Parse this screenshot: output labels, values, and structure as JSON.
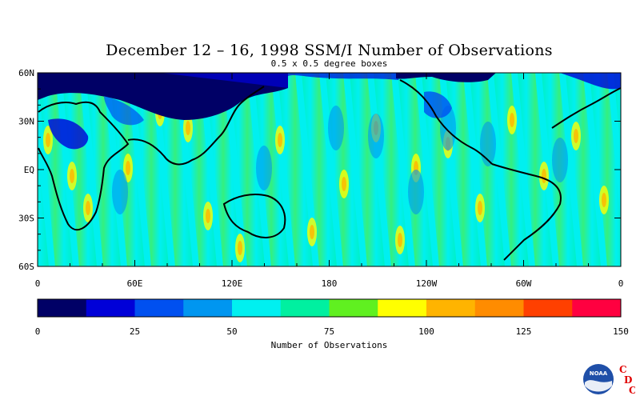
{
  "title": "December 12 – 16, 1998 SSM/I Number of Observations",
  "subtitle": "0.5 x 0.5 degree boxes",
  "map": {
    "lat_labels": [
      "60N",
      "30N",
      "EQ",
      "30S",
      "60S"
    ],
    "lat_values": [
      60,
      30,
      0,
      -30,
      -60
    ],
    "lon_labels": [
      "0",
      "60E",
      "120E",
      "180",
      "120W",
      "60W",
      "0"
    ],
    "lon_values": [
      0,
      60,
      120,
      180,
      240,
      300,
      360
    ],
    "lat_range": [
      -60,
      60
    ],
    "lon_range": [
      0,
      360
    ]
  },
  "colorbar": {
    "title": "Number of Observations",
    "tick_labels": [
      "0",
      "25",
      "50",
      "75",
      "100",
      "125",
      "150"
    ],
    "range": [
      0,
      150
    ],
    "colors": [
      "#000066",
      "#0000d8",
      "#0050f0",
      "#0096f0",
      "#00f0f0",
      "#00f0a0",
      "#60f020",
      "#ffff00",
      "#ffb400",
      "#ff8c00",
      "#ff4000",
      "#ff0040"
    ]
  },
  "logo": {
    "text": "NOAA",
    "letters": [
      "C",
      "D",
      "C"
    ],
    "letter_color": "#e00000"
  }
}
